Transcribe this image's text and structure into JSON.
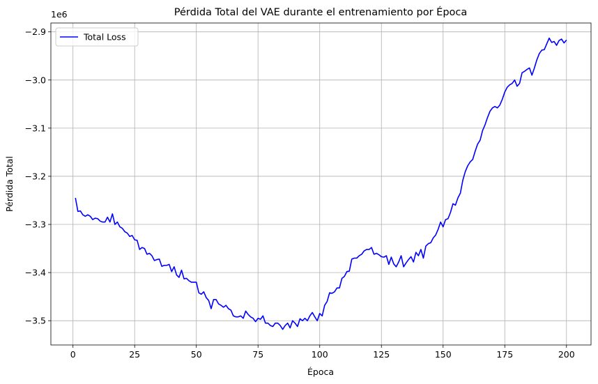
{
  "chart_data": {
    "type": "line",
    "title": "Pérdida Total del VAE durante el entrenamiento por Época",
    "xlabel": "Época",
    "ylabel": "Pérdida Total",
    "y_offset_label": "1e6",
    "legend": "upper left",
    "grid": true,
    "x": [
      1,
      2,
      3,
      4,
      5,
      6,
      7,
      8,
      9,
      10,
      11,
      12,
      13,
      14,
      15,
      16,
      17,
      18,
      19,
      20,
      21,
      22,
      23,
      24,
      25,
      26,
      27,
      28,
      29,
      30,
      31,
      32,
      33,
      34,
      35,
      36,
      37,
      38,
      39,
      40,
      41,
      42,
      43,
      44,
      45,
      46,
      47,
      48,
      49,
      50,
      51,
      52,
      53,
      54,
      55,
      56,
      57,
      58,
      59,
      60,
      61,
      62,
      63,
      64,
      65,
      66,
      67,
      68,
      69,
      70,
      71,
      72,
      73,
      74,
      75,
      76,
      77,
      78,
      79,
      80,
      81,
      82,
      83,
      84,
      85,
      86,
      87,
      88,
      89,
      90,
      91,
      92,
      93,
      94,
      95,
      96,
      97,
      98,
      99,
      100,
      101,
      102,
      103,
      104,
      105,
      106,
      107,
      108,
      109,
      110,
      111,
      112,
      113,
      114,
      115,
      116,
      117,
      118,
      119,
      120,
      121,
      122,
      123,
      124,
      125,
      126,
      127,
      128,
      129,
      130,
      131,
      132,
      133,
      134,
      135,
      136,
      137,
      138,
      139,
      140,
      141,
      142,
      143,
      144,
      145,
      146,
      147,
      148,
      149,
      150,
      151,
      152,
      153,
      154,
      155,
      156,
      157,
      158,
      159,
      160,
      161,
      162,
      163,
      164,
      165,
      166,
      167,
      168,
      169,
      170,
      171,
      172,
      173,
      174,
      175,
      176,
      177,
      178,
      179,
      180,
      181,
      182,
      183,
      184,
      185,
      186,
      187,
      188,
      189,
      190,
      191,
      192,
      193,
      194,
      195,
      196,
      197,
      198,
      199,
      200
    ],
    "series": [
      {
        "name": "Total Loss",
        "color": "#0000ff",
        "values": [
          -3.245,
          -3.273,
          -3.272,
          -3.28,
          -3.283,
          -3.28,
          -3.283,
          -3.29,
          -3.287,
          -3.288,
          -3.293,
          -3.295,
          -3.295,
          -3.285,
          -3.295,
          -3.278,
          -3.3,
          -3.295,
          -3.305,
          -3.308,
          -3.315,
          -3.318,
          -3.325,
          -3.323,
          -3.332,
          -3.333,
          -3.352,
          -3.348,
          -3.35,
          -3.362,
          -3.36,
          -3.365,
          -3.375,
          -3.373,
          -3.372,
          -3.387,
          -3.385,
          -3.385,
          -3.383,
          -3.398,
          -3.388,
          -3.405,
          -3.41,
          -3.395,
          -3.413,
          -3.412,
          -3.417,
          -3.42,
          -3.42,
          -3.42,
          -3.442,
          -3.445,
          -3.44,
          -3.452,
          -3.458,
          -3.475,
          -3.456,
          -3.456,
          -3.465,
          -3.468,
          -3.472,
          -3.468,
          -3.475,
          -3.478,
          -3.49,
          -3.492,
          -3.492,
          -3.49,
          -3.495,
          -3.48,
          -3.487,
          -3.492,
          -3.495,
          -3.502,
          -3.495,
          -3.497,
          -3.49,
          -3.505,
          -3.505,
          -3.51,
          -3.512,
          -3.505,
          -3.505,
          -3.51,
          -3.518,
          -3.51,
          -3.505,
          -3.515,
          -3.5,
          -3.505,
          -3.512,
          -3.496,
          -3.5,
          -3.495,
          -3.5,
          -3.49,
          -3.483,
          -3.492,
          -3.5,
          -3.485,
          -3.49,
          -3.468,
          -3.46,
          -3.442,
          -3.443,
          -3.44,
          -3.432,
          -3.432,
          -3.412,
          -3.408,
          -3.398,
          -3.397,
          -3.372,
          -3.37,
          -3.37,
          -3.365,
          -3.362,
          -3.355,
          -3.352,
          -3.352,
          -3.348,
          -3.362,
          -3.36,
          -3.363,
          -3.367,
          -3.368,
          -3.365,
          -3.383,
          -3.368,
          -3.382,
          -3.388,
          -3.378,
          -3.365,
          -3.388,
          -3.38,
          -3.373,
          -3.367,
          -3.378,
          -3.358,
          -3.365,
          -3.352,
          -3.37,
          -3.345,
          -3.34,
          -3.338,
          -3.328,
          -3.322,
          -3.31,
          -3.295,
          -3.305,
          -3.29,
          -3.288,
          -3.275,
          -3.257,
          -3.26,
          -3.245,
          -3.235,
          -3.208,
          -3.19,
          -3.178,
          -3.17,
          -3.165,
          -3.148,
          -3.133,
          -3.125,
          -3.105,
          -3.093,
          -3.078,
          -3.065,
          -3.058,
          -3.055,
          -3.058,
          -3.052,
          -3.04,
          -3.025,
          -3.015,
          -3.01,
          -3.007,
          -3.0,
          -3.013,
          -3.007,
          -2.985,
          -2.982,
          -2.978,
          -2.975,
          -2.99,
          -2.975,
          -2.958,
          -2.945,
          -2.938,
          -2.937,
          -2.925,
          -2.913,
          -2.922,
          -2.92,
          -2.928,
          -2.918,
          -2.915,
          -2.923,
          -2.917
        ]
      }
    ],
    "xlim": [
      -8.95,
      209.95
    ],
    "xticks": [
      0,
      25,
      50,
      75,
      100,
      125,
      150,
      175,
      200
    ],
    "ylim": [
      -3.5504,
      -2.8816
    ],
    "yticks": [
      {
        "value": -3.5,
        "label": "−3.5"
      },
      {
        "value": -3.4,
        "label": "−3.4"
      },
      {
        "value": -3.3,
        "label": "−3.3"
      },
      {
        "value": -3.2,
        "label": "−3.2"
      },
      {
        "value": -3.1,
        "label": "−3.1"
      },
      {
        "value": -3.0,
        "label": "−3.0"
      },
      {
        "value": -2.9,
        "label": "−2.9"
      }
    ]
  }
}
